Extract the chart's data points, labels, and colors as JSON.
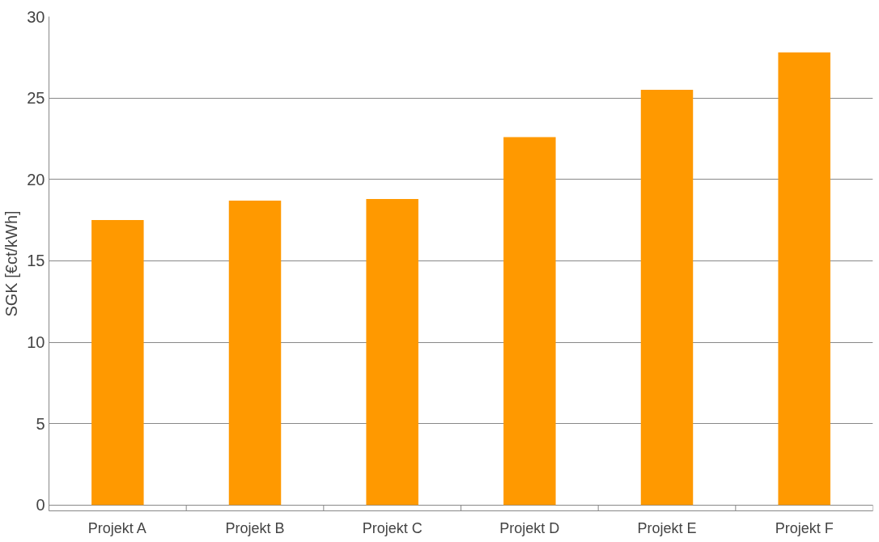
{
  "chart_data": {
    "type": "bar",
    "ylabel": "SGK [€ct/kWh]",
    "categories": [
      "Projekt A",
      "Projekt B",
      "Projekt C",
      "Projekt D",
      "Projekt E",
      "Projekt F"
    ],
    "values": [
      17.5,
      18.7,
      18.8,
      22.6,
      25.5,
      27.8
    ],
    "color": "#ff9900",
    "ylim": [
      0,
      30
    ],
    "yticks": [
      0,
      5,
      10,
      15,
      20,
      25,
      30
    ],
    "grid": "y"
  }
}
